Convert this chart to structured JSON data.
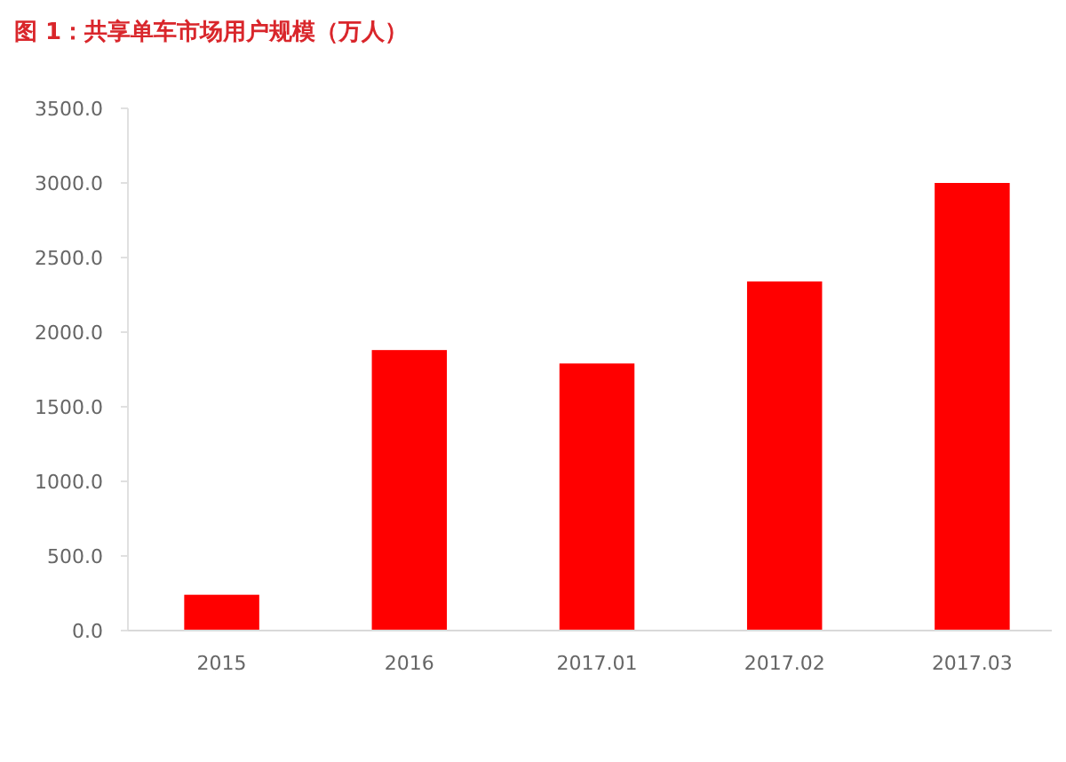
{
  "chart_data": {
    "type": "bar",
    "title": "图 1：共享单车市场用户规模（万人）",
    "categories": [
      "2015",
      "2016",
      "2017.01",
      "2017.02",
      "2017.03"
    ],
    "values": [
      240,
      1880,
      1790,
      2340,
      3000
    ],
    "color": "#ff0000",
    "ylim": [
      0,
      3500
    ],
    "yticks": [
      {
        "value": 0,
        "label": "0.0"
      },
      {
        "value": 500,
        "label": "500.0"
      },
      {
        "value": 1000,
        "label": "1000.0"
      },
      {
        "value": 1500,
        "label": "1500.0"
      },
      {
        "value": 2000,
        "label": "2000.0"
      },
      {
        "value": 2500,
        "label": "2500.0"
      },
      {
        "value": 3000,
        "label": "3000.0"
      },
      {
        "value": 3500,
        "label": "3500.0"
      }
    ],
    "grid": false
  }
}
